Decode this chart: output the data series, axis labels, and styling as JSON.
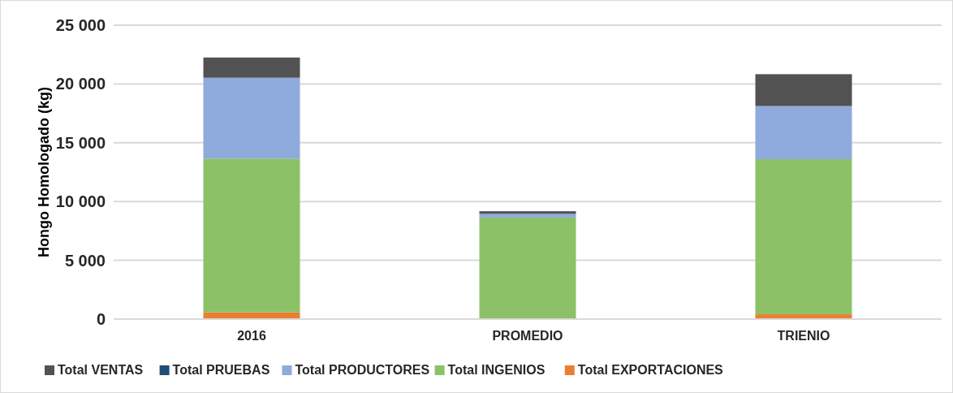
{
  "chart_data": {
    "type": "bar",
    "stacked": true,
    "ylabel": "Hongo Homologado (kg)",
    "categories": [
      "2016",
      "PROMEDIO",
      "TRIENIO"
    ],
    "series": [
      {
        "name": "Total EXPORTACIONES",
        "color": "#ed7d31",
        "values": [
          570,
          0,
          410
        ]
      },
      {
        "name": "Total INGENIOS",
        "color": "#8cc168",
        "values": [
          13080,
          8640,
          13190
        ]
      },
      {
        "name": "Total PRODUCTORES",
        "color": "#8faadc",
        "values": [
          6880,
          310,
          4520
        ]
      },
      {
        "name": "Total PRUEBAS",
        "color": "#1f4e79",
        "values": [
          0,
          0,
          0
        ]
      },
      {
        "name": "Total VENTAS",
        "color": "#525252",
        "values": [
          1720,
          225,
          2710
        ]
      }
    ],
    "ylim": [
      0,
      25000
    ],
    "yticks": [
      {
        "value": 0,
        "label": "0"
      },
      {
        "value": 5000,
        "label": "5 000"
      },
      {
        "value": 10000,
        "label": "10 000"
      },
      {
        "value": 15000,
        "label": "15 000"
      },
      {
        "value": 20000,
        "label": "20 000"
      },
      {
        "value": 25000,
        "label": "25 000"
      }
    ],
    "grid": "y",
    "legend": "bottom"
  }
}
